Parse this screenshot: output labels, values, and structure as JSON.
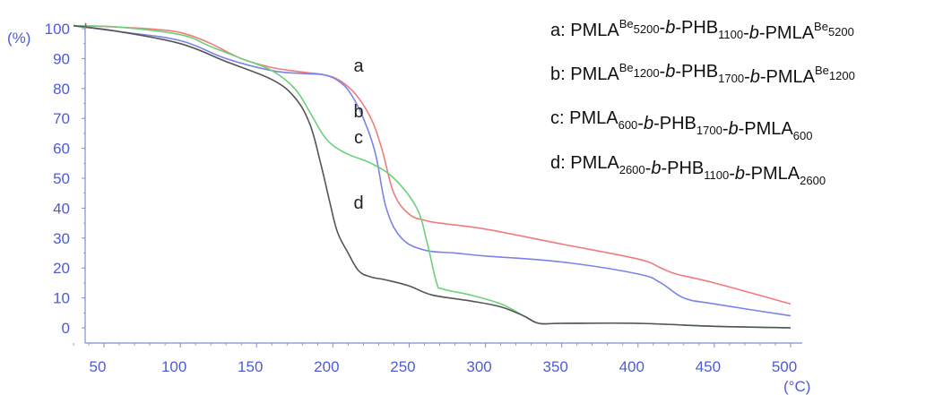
{
  "chart_data": {
    "type": "line",
    "xlabel": "(°C)",
    "ylabel": "(%)",
    "xlim": [
      30,
      500
    ],
    "ylim": [
      -3,
      102
    ],
    "xticks": [
      50,
      100,
      150,
      200,
      250,
      300,
      350,
      400,
      450,
      500
    ],
    "yticks": [
      0,
      10,
      20,
      30,
      40,
      50,
      60,
      70,
      80,
      90,
      100
    ],
    "grid": false,
    "legend_position": "top-right",
    "series": [
      {
        "name": "a",
        "color": "#f07b7b",
        "legend": {
          "prefix": "a: ",
          "segments": [
            [
              "PMLA",
              ""
            ],
            [
              "Be",
              "sup"
            ],
            [
              "5200",
              "sub"
            ],
            [
              "-",
              ""
            ],
            [
              "b",
              "it"
            ],
            [
              "-PHB",
              ""
            ],
            [
              "1100",
              "sub"
            ],
            [
              "-",
              ""
            ],
            [
              "b",
              "it"
            ],
            [
              "-PMLA",
              ""
            ],
            [
              "Be",
              "sup"
            ],
            [
              "5200",
              "sub"
            ]
          ]
        },
        "x": [
          30,
          60,
          90,
          105,
          120,
          140,
          160,
          180,
          195,
          205,
          215,
          225,
          232,
          240,
          250,
          260,
          270,
          300,
          350,
          400,
          415,
          425,
          450,
          500
        ],
        "y": [
          101,
          100.5,
          99.5,
          98,
          95,
          90,
          87,
          85.5,
          84.5,
          82.5,
          78,
          70,
          60,
          45,
          38,
          36,
          35,
          33,
          28,
          23,
          20,
          18,
          15,
          8
        ]
      },
      {
        "name": "b",
        "color": "#7b83e8",
        "legend": {
          "prefix": "b: ",
          "segments": [
            [
              "PMLA",
              ""
            ],
            [
              "Be",
              "sup"
            ],
            [
              "1200",
              "sub"
            ],
            [
              "-",
              ""
            ],
            [
              "b",
              "it"
            ],
            [
              "-PHB",
              ""
            ],
            [
              "1700",
              "sub"
            ],
            [
              "-",
              ""
            ],
            [
              "b",
              "it"
            ],
            [
              "-PMLA",
              ""
            ],
            [
              "Be",
              "sup"
            ],
            [
              "1200",
              "sub"
            ]
          ]
        },
        "x": [
          30,
          60,
          100,
          130,
          160,
          180,
          195,
          205,
          212,
          220,
          228,
          235,
          245,
          260,
          280,
          300,
          350,
          400,
          415,
          430,
          450,
          500
        ],
        "y": [
          101,
          99,
          96,
          90,
          86,
          85,
          84.5,
          82,
          78,
          70,
          58,
          40,
          30,
          26,
          25,
          24,
          22,
          18,
          15,
          10,
          8,
          4
        ]
      },
      {
        "name": "c",
        "color": "#6ed07a",
        "legend": {
          "prefix": "c: ",
          "segments": [
            [
              "PMLA",
              ""
            ],
            [
              "600",
              "sub"
            ],
            [
              "-",
              ""
            ],
            [
              "b",
              "it"
            ],
            [
              "-PHB",
              ""
            ],
            [
              "1700",
              "sub"
            ],
            [
              "-",
              ""
            ],
            [
              "b",
              "it"
            ],
            [
              "-PMLA",
              ""
            ],
            [
              "600",
              "sub"
            ]
          ]
        },
        "x": [
          30,
          60,
          100,
          120,
          140,
          160,
          175,
          185,
          193,
          200,
          210,
          225,
          240,
          255,
          262,
          268,
          272,
          290,
          310,
          325,
          335,
          350,
          400,
          450,
          500
        ],
        "y": [
          101,
          100.5,
          98,
          94,
          90,
          86,
          80,
          72,
          65,
          61,
          58,
          55,
          50,
          40,
          28,
          15,
          13,
          11,
          8,
          4,
          1.5,
          1.5,
          1.5,
          0.5,
          0
        ]
      },
      {
        "name": "d",
        "color": "#555555",
        "legend": {
          "prefix": "d: ",
          "segments": [
            [
              "PMLA",
              ""
            ],
            [
              "2600",
              "sub"
            ],
            [
              "-",
              ""
            ],
            [
              "b",
              "it"
            ],
            [
              "-PHB",
              ""
            ],
            [
              "1100",
              "sub"
            ],
            [
              "-",
              ""
            ],
            [
              "b",
              "it"
            ],
            [
              "-PMLA",
              ""
            ],
            [
              "2600",
              "sub"
            ]
          ]
        },
        "x": [
          30,
          60,
          100,
          130,
          160,
          175,
          185,
          192,
          198,
          203,
          210,
          217,
          225,
          235,
          250,
          265,
          290,
          310,
          325,
          335,
          350,
          400,
          450,
          500
        ],
        "y": [
          101,
          99,
          95,
          89,
          83,
          77,
          68,
          55,
          42,
          32,
          25,
          19,
          17,
          16,
          14,
          11,
          9,
          7,
          4,
          1.5,
          1.5,
          1.5,
          0.5,
          0
        ]
      }
    ],
    "annotations": [
      {
        "text": "a",
        "x": 204,
        "y": 88
      },
      {
        "text": "b",
        "x": 204,
        "y": 76
      },
      {
        "text": "c",
        "x": 204,
        "y": 67
      },
      {
        "text": "d",
        "x": 204,
        "y": 42
      }
    ]
  },
  "colors": {
    "axis": "#7f8fcf",
    "tick_text": "#4f5bd5"
  }
}
